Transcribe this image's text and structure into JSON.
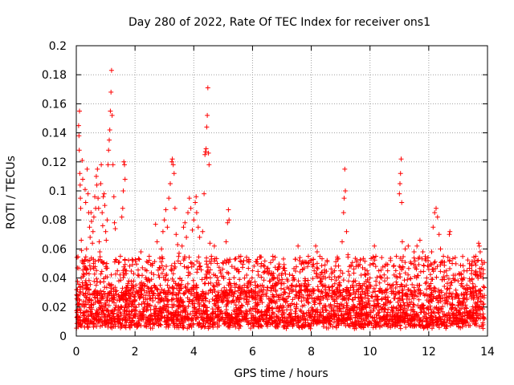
{
  "chart_data": {
    "type": "scatter",
    "title": "Day 280 of 2022, Rate Of TEC Index for receiver ons1",
    "xlabel": "GPS time / hours",
    "ylabel": "ROTI / TECUs",
    "xlim": [
      0,
      14
    ],
    "ylim": [
      0,
      0.2
    ],
    "x_ticks": [
      0,
      2,
      4,
      6,
      8,
      10,
      12,
      14
    ],
    "x_tick_labels": [
      "0",
      "2",
      "4",
      "6",
      "8",
      "10",
      "12",
      "14"
    ],
    "y_ticks": [
      0,
      0.02,
      0.04,
      0.06,
      0.08,
      0.1,
      0.12,
      0.14,
      0.16,
      0.18,
      0.2
    ],
    "y_tick_labels": [
      "0",
      "0.02",
      "0.04",
      "0.06",
      "0.08",
      "0.1",
      "0.12",
      "0.14",
      "0.16",
      "0.18",
      "0.2"
    ],
    "grid": true,
    "marker": "+",
    "marker_color": "#ff0000",
    "series": [
      {
        "points": [
          [
            0.02,
            0.013
          ],
          [
            0.05,
            0.018
          ],
          [
            0.07,
            0.022
          ],
          [
            0.08,
            0.145
          ],
          [
            0.09,
            0.138
          ],
          [
            0.1,
            0.128
          ],
          [
            0.11,
            0.155
          ],
          [
            0.12,
            0.112
          ],
          [
            0.13,
            0.104
          ],
          [
            0.14,
            0.095
          ],
          [
            0.15,
            0.088
          ],
          [
            0.17,
            0.066
          ],
          [
            0.18,
            0.059
          ],
          [
            0.2,
            0.121
          ],
          [
            0.22,
            0.108
          ],
          [
            0.24,
            0.05
          ],
          [
            0.25,
            0.043
          ],
          [
            0.27,
            0.028
          ],
          [
            0.3,
            0.101
          ],
          [
            0.32,
            0.092
          ],
          [
            0.35,
            0.06
          ],
          [
            0.37,
            0.115
          ],
          [
            0.4,
            0.098
          ],
          [
            0.42,
            0.085
          ],
          [
            0.45,
            0.075
          ],
          [
            0.47,
            0.068
          ],
          [
            0.5,
            0.085
          ],
          [
            0.52,
            0.079
          ],
          [
            0.55,
            0.064
          ],
          [
            0.57,
            0.072
          ],
          [
            0.6,
            0.082
          ],
          [
            0.63,
            0.096
          ],
          [
            0.66,
            0.088
          ],
          [
            0.68,
            0.11
          ],
          [
            0.7,
            0.104
          ],
          [
            0.72,
            0.115
          ],
          [
            0.74,
            0.095
          ],
          [
            0.76,
            0.088
          ],
          [
            0.78,
            0.065
          ],
          [
            0.8,
            0.058
          ],
          [
            0.83,
            0.105
          ],
          [
            0.85,
            0.118
          ],
          [
            0.88,
            0.085
          ],
          [
            0.9,
            0.076
          ],
          [
            0.92,
            0.096
          ],
          [
            0.95,
            0.098
          ],
          [
            0.97,
            0.09
          ],
          [
            1.0,
            0.072
          ],
          [
            1.02,
            0.066
          ],
          [
            1.05,
            0.08
          ],
          [
            1.08,
            0.118
          ],
          [
            1.1,
            0.128
          ],
          [
            1.12,
            0.135
          ],
          [
            1.14,
            0.142
          ],
          [
            1.16,
            0.155
          ],
          [
            1.18,
            0.168
          ],
          [
            1.2,
            0.183
          ],
          [
            1.22,
            0.152
          ],
          [
            1.25,
            0.118
          ],
          [
            1.28,
            0.096
          ],
          [
            1.3,
            0.078
          ],
          [
            1.33,
            0.074
          ],
          [
            1.36,
            0.052
          ],
          [
            1.4,
            0.045
          ],
          [
            1.45,
            0.038
          ],
          [
            1.5,
            0.055
          ],
          [
            1.55,
            0.082
          ],
          [
            1.58,
            0.088
          ],
          [
            1.6,
            0.1
          ],
          [
            1.62,
            0.12
          ],
          [
            1.64,
            0.118
          ],
          [
            1.66,
            0.108
          ],
          [
            1.7,
            0.045
          ],
          [
            1.75,
            0.035
          ],
          [
            1.8,
            0.028
          ],
          [
            1.85,
            0.032
          ],
          [
            1.9,
            0.022
          ],
          [
            1.95,
            0.038
          ],
          [
            2.0,
            0.025
          ],
          [
            2.05,
            0.031
          ],
          [
            2.1,
            0.042
          ],
          [
            2.15,
            0.026
          ],
          [
            2.2,
            0.058
          ],
          [
            2.25,
            0.047
          ],
          [
            2.3,
            0.036
          ],
          [
            2.35,
            0.028
          ],
          [
            2.4,
            0.045
          ],
          [
            2.5,
            0.038
          ],
          [
            2.6,
            0.05
          ],
          [
            2.7,
            0.077
          ],
          [
            2.75,
            0.065
          ],
          [
            2.8,
            0.042
          ],
          [
            2.9,
            0.06
          ],
          [
            2.95,
            0.072
          ],
          [
            3.0,
            0.08
          ],
          [
            3.05,
            0.087
          ],
          [
            3.1,
            0.075
          ],
          [
            3.15,
            0.095
          ],
          [
            3.2,
            0.105
          ],
          [
            3.25,
            0.12
          ],
          [
            3.27,
            0.122
          ],
          [
            3.3,
            0.118
          ],
          [
            3.33,
            0.112
          ],
          [
            3.36,
            0.088
          ],
          [
            3.4,
            0.07
          ],
          [
            3.45,
            0.063
          ],
          [
            3.5,
            0.057
          ],
          [
            3.55,
            0.05
          ],
          [
            3.6,
            0.062
          ],
          [
            3.65,
            0.075
          ],
          [
            3.7,
            0.078
          ],
          [
            3.75,
            0.068
          ],
          [
            3.8,
            0.085
          ],
          [
            3.85,
            0.095
          ],
          [
            3.9,
            0.088
          ],
          [
            3.95,
            0.073
          ],
          [
            4.0,
            0.08
          ],
          [
            4.05,
            0.092
          ],
          [
            4.08,
            0.096
          ],
          [
            4.1,
            0.085
          ],
          [
            4.15,
            0.075
          ],
          [
            4.2,
            0.068
          ],
          [
            4.3,
            0.072
          ],
          [
            4.35,
            0.098
          ],
          [
            4.38,
            0.125
          ],
          [
            4.4,
            0.127
          ],
          [
            4.42,
            0.129
          ],
          [
            4.44,
            0.144
          ],
          [
            4.46,
            0.152
          ],
          [
            4.48,
            0.171
          ],
          [
            4.5,
            0.126
          ],
          [
            4.52,
            0.118
          ],
          [
            4.55,
            0.064
          ],
          [
            4.6,
            0.055
          ],
          [
            4.7,
            0.062
          ],
          [
            4.8,
            0.05
          ],
          [
            4.9,
            0.045
          ],
          [
            5.0,
            0.041
          ],
          [
            5.1,
            0.065
          ],
          [
            5.15,
            0.078
          ],
          [
            5.18,
            0.087
          ],
          [
            5.2,
            0.08
          ],
          [
            5.3,
            0.048
          ],
          [
            5.4,
            0.053
          ],
          [
            5.5,
            0.046
          ],
          [
            5.6,
            0.055
          ],
          [
            5.7,
            0.052
          ],
          [
            5.8,
            0.042
          ],
          [
            5.9,
            0.038
          ],
          [
            6.0,
            0.045
          ],
          [
            6.1,
            0.035
          ],
          [
            6.2,
            0.042
          ],
          [
            6.3,
            0.05
          ],
          [
            6.4,
            0.048
          ],
          [
            6.5,
            0.044
          ],
          [
            6.6,
            0.038
          ],
          [
            6.7,
            0.04
          ],
          [
            6.8,
            0.035
          ],
          [
            6.9,
            0.042
          ],
          [
            7.0,
            0.036
          ],
          [
            7.1,
            0.045
          ],
          [
            7.2,
            0.038
          ],
          [
            7.3,
            0.032
          ],
          [
            7.4,
            0.04
          ],
          [
            7.5,
            0.035
          ],
          [
            7.55,
            0.062
          ],
          [
            7.6,
            0.052
          ],
          [
            7.7,
            0.046
          ],
          [
            7.8,
            0.038
          ],
          [
            7.9,
            0.055
          ],
          [
            8.0,
            0.052
          ],
          [
            8.1,
            0.045
          ],
          [
            8.15,
            0.062
          ],
          [
            8.2,
            0.058
          ],
          [
            8.3,
            0.04
          ],
          [
            8.4,
            0.035
          ],
          [
            8.5,
            0.03
          ],
          [
            8.6,
            0.028
          ],
          [
            8.7,
            0.034
          ],
          [
            8.8,
            0.036
          ],
          [
            8.9,
            0.032
          ],
          [
            9.0,
            0.045
          ],
          [
            9.05,
            0.065
          ],
          [
            9.1,
            0.085
          ],
          [
            9.12,
            0.095
          ],
          [
            9.14,
            0.115
          ],
          [
            9.16,
            0.1
          ],
          [
            9.2,
            0.072
          ],
          [
            9.25,
            0.056
          ],
          [
            9.3,
            0.042
          ],
          [
            9.4,
            0.035
          ],
          [
            9.5,
            0.038
          ],
          [
            9.6,
            0.048
          ],
          [
            9.7,
            0.042
          ],
          [
            9.8,
            0.036
          ],
          [
            9.9,
            0.045
          ],
          [
            10.0,
            0.04
          ],
          [
            10.1,
            0.05
          ],
          [
            10.15,
            0.062
          ],
          [
            10.2,
            0.055
          ],
          [
            10.3,
            0.045
          ],
          [
            10.4,
            0.04
          ],
          [
            10.5,
            0.038
          ],
          [
            10.6,
            0.045
          ],
          [
            10.7,
            0.052
          ],
          [
            10.8,
            0.048
          ],
          [
            10.9,
            0.055
          ],
          [
            11.0,
            0.098
          ],
          [
            11.02,
            0.105
          ],
          [
            11.04,
            0.112
          ],
          [
            11.06,
            0.122
          ],
          [
            11.08,
            0.092
          ],
          [
            11.1,
            0.065
          ],
          [
            11.2,
            0.06
          ],
          [
            11.3,
            0.062
          ],
          [
            11.4,
            0.05
          ],
          [
            11.5,
            0.058
          ],
          [
            11.6,
            0.062
          ],
          [
            11.7,
            0.066
          ],
          [
            11.8,
            0.058
          ],
          [
            11.9,
            0.052
          ],
          [
            12.0,
            0.048
          ],
          [
            12.1,
            0.058
          ],
          [
            12.15,
            0.075
          ],
          [
            12.2,
            0.085
          ],
          [
            12.25,
            0.088
          ],
          [
            12.3,
            0.082
          ],
          [
            12.35,
            0.07
          ],
          [
            12.4,
            0.06
          ],
          [
            12.5,
            0.055
          ],
          [
            12.6,
            0.045
          ],
          [
            12.7,
            0.07
          ],
          [
            12.72,
            0.072
          ],
          [
            12.8,
            0.05
          ],
          [
            12.9,
            0.042
          ],
          [
            13.0,
            0.038
          ],
          [
            13.1,
            0.035
          ],
          [
            13.2,
            0.04
          ],
          [
            13.3,
            0.045
          ],
          [
            13.4,
            0.038
          ],
          [
            13.5,
            0.036
          ],
          [
            13.6,
            0.042
          ],
          [
            13.7,
            0.064
          ],
          [
            13.72,
            0.062
          ],
          [
            13.75,
            0.058
          ],
          [
            13.8,
            0.052
          ],
          [
            13.85,
            0.04
          ]
        ]
      }
    ],
    "baseline": {
      "x_range": [
        0,
        13.9
      ],
      "y_range": [
        0.005,
        0.035
      ],
      "note_free": true
    }
  }
}
